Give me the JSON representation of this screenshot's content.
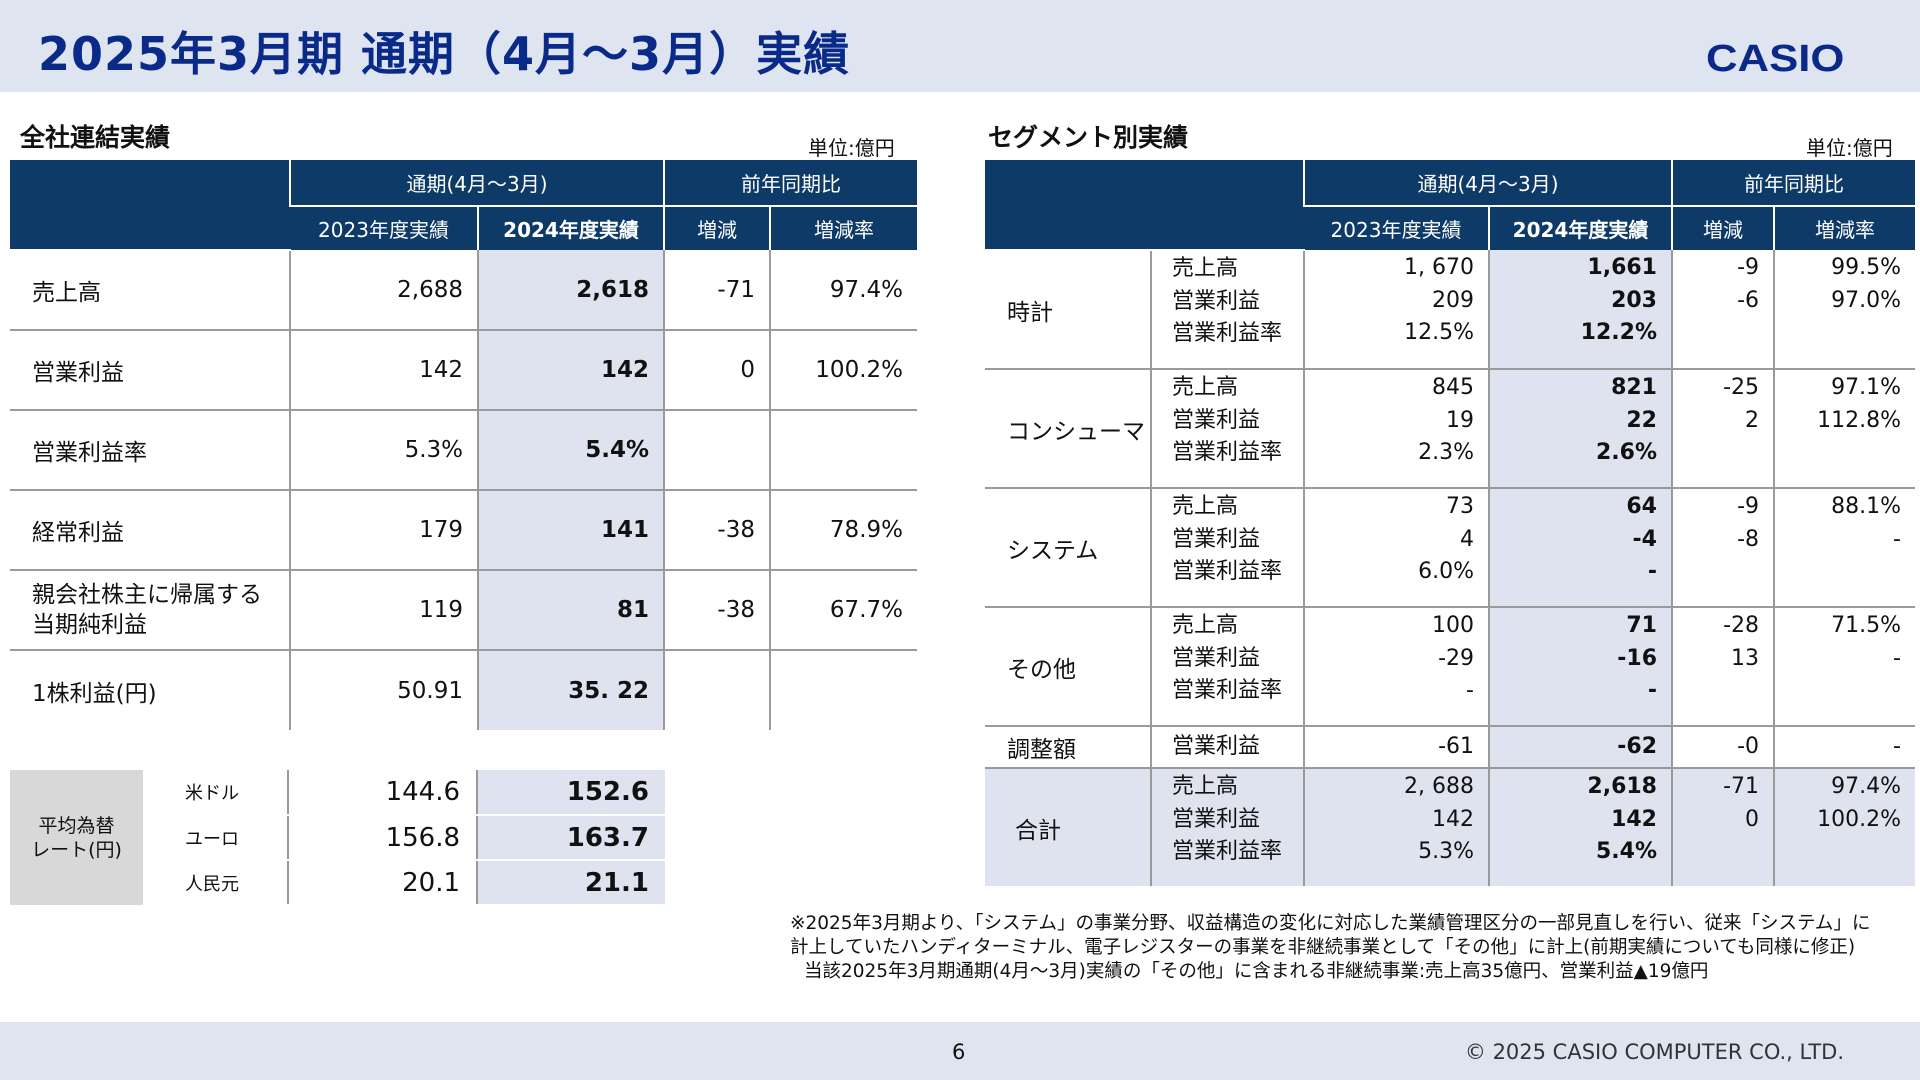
{
  "header": {
    "title": "2025年3月期 通期（4月～3月）実績",
    "logo": "CASIO"
  },
  "left": {
    "section_title": "全社連結実績",
    "unit": "単位:億円",
    "head": {
      "period": "通期(4月～3月)",
      "yoy": "前年同期比",
      "prev": "2023年度実績",
      "cur": "2024年度実績",
      "diff": "増減",
      "rate": "増減率"
    },
    "rows": [
      {
        "label": "売上高",
        "prev": "2,688",
        "cur": "2,618",
        "diff": "-71",
        "rate": "97.4%"
      },
      {
        "label": "営業利益",
        "prev": "142",
        "cur": "142",
        "diff": "0",
        "rate": "100.2%"
      },
      {
        "label": "営業利益率",
        "prev": "5.3%",
        "cur": "5.4%",
        "diff": "",
        "rate": ""
      },
      {
        "label": "経常利益",
        "prev": "179",
        "cur": "141",
        "diff": "-38",
        "rate": "78.9%"
      },
      {
        "label": "親会社株主に帰属する",
        "label2": "当期純利益",
        "prev": "119",
        "cur": "81",
        "diff": "-38",
        "rate": "67.7%"
      },
      {
        "label": "1株利益(円)",
        "prev": "50.91",
        "cur": "35. 22",
        "diff": "",
        "rate": ""
      }
    ]
  },
  "fx": {
    "label1": "平均為替",
    "label2": "レート(円)",
    "rows": [
      {
        "name": "米ドル",
        "prev": "144.6",
        "cur": "152.6"
      },
      {
        "name": "ユーロ",
        "prev": "156.8",
        "cur": "163.7"
      },
      {
        "name": "人民元",
        "prev": "20.1",
        "cur": "21.1"
      }
    ]
  },
  "right": {
    "section_title": "セグメント別実績",
    "unit": "単位:億円",
    "head": {
      "period": "通期(4月～3月)",
      "yoy": "前年同期比",
      "prev": "2023年度実績",
      "cur": "2024年度実績",
      "diff": "増減",
      "rate": "増減率"
    },
    "segments": [
      {
        "name": "時計",
        "items": [
          "売上高",
          "営業利益",
          "営業利益率"
        ],
        "prev": [
          "1, 670",
          "209",
          "12.5%"
        ],
        "cur": [
          "1,661",
          "203",
          "12.2%"
        ],
        "diff": [
          "-9",
          "-6"
        ],
        "rate": [
          "99.5%",
          "97.0%"
        ]
      },
      {
        "name": "コンシューマ",
        "items": [
          "売上高",
          "営業利益",
          "営業利益率"
        ],
        "prev": [
          "845",
          "19",
          "2.3%"
        ],
        "cur": [
          "821",
          "22",
          "2.6%"
        ],
        "diff": [
          "-25",
          "2"
        ],
        "rate": [
          "97.1%",
          "112.8%"
        ]
      },
      {
        "name": "システム",
        "items": [
          "売上高",
          "営業利益",
          "営業利益率"
        ],
        "prev": [
          "73",
          "4",
          "6.0%"
        ],
        "cur": [
          "64",
          "-4",
          "-"
        ],
        "diff": [
          "-9",
          "-8"
        ],
        "rate": [
          "88.1%",
          "-"
        ]
      },
      {
        "name": "その他",
        "items": [
          "売上高",
          "営業利益",
          "営業利益率"
        ],
        "prev": [
          "100",
          "-29",
          "-"
        ],
        "cur": [
          "71",
          "-16",
          "-"
        ],
        "diff": [
          "-28",
          "13"
        ],
        "rate": [
          "71.5%",
          "-"
        ]
      }
    ],
    "adjust": {
      "name": "調整額",
      "item": "営業利益",
      "prev": "-61",
      "cur": "-62",
      "diff": "-0",
      "rate": "-"
    },
    "total": {
      "name": "合計",
      "items": [
        "売上高",
        "営業利益",
        "営業利益率"
      ],
      "prev": [
        "2, 688",
        "142",
        "5.3%"
      ],
      "cur": [
        "2,618",
        "142",
        "5.4%"
      ],
      "diff": [
        "-71",
        "0"
      ],
      "rate": [
        "97.4%",
        "100.2%"
      ]
    }
  },
  "notes": [
    "※2025年3月期より、「システム」の事業分野、収益構造の変化に対応した業績管理区分の一部見直しを行い、従来「システム」に",
    "計上していたハンディターミナル、電子レジスターの事業を非継続事業として「その他」に計上(前期実績についても同様に修正)",
    "当該2025年3月期通期(4月～3月)実績の「その他」に含まれる非継続事業:売上高35億円、営業利益▲19億円"
  ],
  "footer": {
    "page": "6",
    "copyright": "© 2025 CASIO COMPUTER CO., LTD."
  }
}
